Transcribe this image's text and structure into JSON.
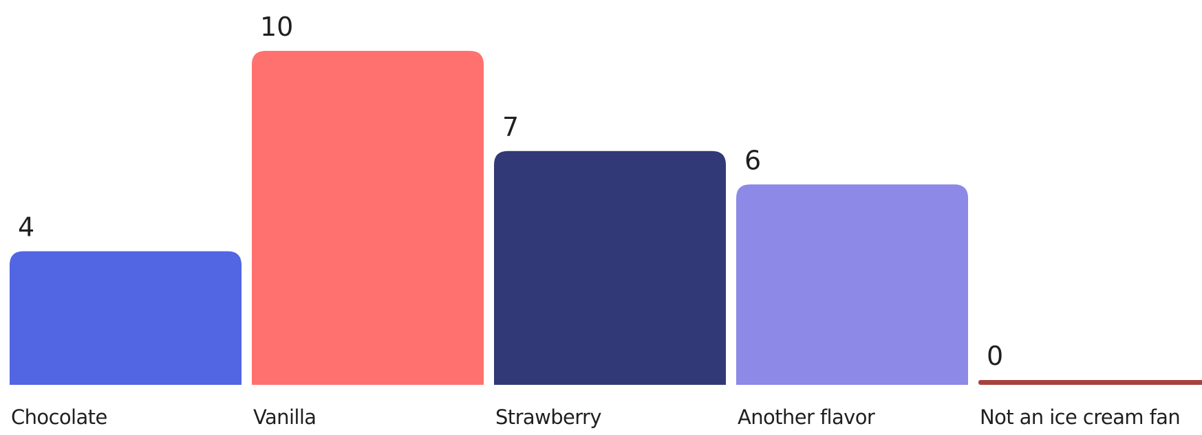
{
  "chart_data": {
    "type": "bar",
    "title": "",
    "xlabel": "",
    "ylabel": "",
    "categories": [
      "Chocolate",
      "Vanilla",
      "Strawberry",
      "Another flavor",
      "Not an ice cream fan"
    ],
    "values": [
      4,
      10,
      7,
      6,
      0
    ],
    "colors": [
      "#5265E3",
      "#FF716E",
      "#313A76",
      "#8C89E7",
      "#A8423E"
    ],
    "ylim": [
      0,
      10
    ],
    "grid": false,
    "legend": "none",
    "data_labels": true
  }
}
